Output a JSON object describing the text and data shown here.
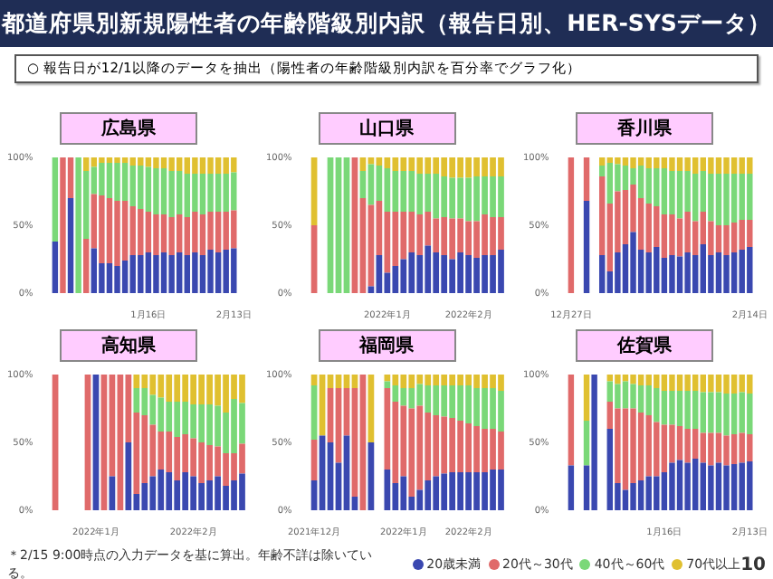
{
  "chart_data": [
    {
      "type": "other",
      "title": "都道府県別新規陽性者の年齢階級別内訳（報告日別、HER-SYSデータ）",
      "subtitle": "○ 報告日が12/1以降のデータを抽出（陽性者の年齢階級別内訳を百分率でグラフ化）",
      "annotations": [
        "＊2/15 9:00時点の入力データを基に算出。年齢不詳は除いている。",
        "10"
      ]
    },
    {
      "type": "bar",
      "title": "広島県",
      "stacked": true,
      "legend": "bottom",
      "ylim": [
        0,
        100
      ],
      "yticks": [
        {
          "value": 0,
          "label": "0%"
        },
        {
          "value": 50,
          "label": "50%"
        },
        {
          "value": 100,
          "label": "100%"
        }
      ],
      "categories": [
        null,
        null,
        null,
        null,
        null,
        null,
        null,
        null,
        null,
        null,
        null,
        null,
        "1月16日",
        null,
        null,
        null,
        null,
        null,
        null,
        null,
        null,
        null,
        null,
        "2月13日"
      ],
      "series": [
        {
          "name": "20歳未満",
          "color": "#3a48b0",
          "values": [
            38,
            0,
            70,
            0,
            0,
            33,
            22,
            22,
            20,
            24,
            28,
            28,
            30,
            28,
            30,
            28,
            30,
            28,
            30,
            28,
            32,
            30,
            32,
            33
          ]
        },
        {
          "name": "20代～30代",
          "color": "#e06a6a",
          "values": [
            0,
            100,
            30,
            0,
            40,
            40,
            50,
            48,
            48,
            44,
            36,
            34,
            30,
            30,
            28,
            28,
            28,
            28,
            30,
            30,
            28,
            30,
            28,
            28
          ]
        },
        {
          "name": "40代～60代",
          "color": "#7ad878",
          "values": [
            62,
            0,
            0,
            100,
            50,
            20,
            24,
            26,
            28,
            28,
            30,
            32,
            33,
            34,
            34,
            34,
            32,
            32,
            28,
            30,
            28,
            28,
            28,
            28
          ]
        },
        {
          "name": "70代以上",
          "color": "#e0c030",
          "values": [
            0,
            0,
            0,
            0,
            10,
            7,
            4,
            4,
            4,
            4,
            6,
            6,
            7,
            8,
            8,
            10,
            10,
            12,
            12,
            12,
            12,
            12,
            12,
            11
          ]
        }
      ]
    },
    {
      "type": "bar",
      "title": "山口県",
      "stacked": true,
      "ylim": [
        0,
        100
      ],
      "yticks": [
        {
          "value": 0,
          "label": "0%"
        },
        {
          "value": 50,
          "label": "50%"
        },
        {
          "value": 100,
          "label": "100%"
        }
      ],
      "categories": [
        null,
        null,
        null,
        null,
        null,
        null,
        null,
        null,
        null,
        "2022年1月",
        null,
        null,
        null,
        null,
        null,
        null,
        null,
        null,
        null,
        "2022年2月",
        null,
        null,
        null,
        null
      ],
      "series": [
        {
          "color": "#3a48b0",
          "values": [
            0,
            null,
            0,
            0,
            0,
            0,
            0,
            5,
            28,
            15,
            20,
            25,
            30,
            28,
            35,
            30,
            28,
            25,
            30,
            28,
            26,
            28,
            28,
            32
          ]
        },
        {
          "color": "#e06a6a",
          "values": [
            50,
            null,
            0,
            0,
            0,
            100,
            70,
            60,
            40,
            45,
            40,
            35,
            30,
            30,
            25,
            25,
            28,
            30,
            25,
            25,
            27,
            30,
            28,
            24
          ]
        },
        {
          "color": "#7ad878",
          "values": [
            0,
            null,
            100,
            100,
            100,
            0,
            20,
            30,
            26,
            32,
            30,
            30,
            30,
            30,
            28,
            33,
            30,
            30,
            30,
            32,
            33,
            28,
            30,
            30
          ]
        },
        {
          "color": "#e0c030",
          "values": [
            50,
            null,
            0,
            0,
            0,
            0,
            10,
            5,
            6,
            8,
            10,
            10,
            10,
            12,
            12,
            12,
            14,
            15,
            15,
            15,
            14,
            14,
            14,
            14
          ]
        }
      ]
    },
    {
      "type": "bar",
      "title": "香川県",
      "stacked": true,
      "ylim": [
        0,
        100
      ],
      "yticks": [
        {
          "value": 0,
          "label": "0%"
        },
        {
          "value": 50,
          "label": "50%"
        },
        {
          "value": 100,
          "label": "100%"
        }
      ],
      "categories": [
        "12月27日",
        null,
        null,
        null,
        null,
        null,
        null,
        null,
        null,
        null,
        null,
        null,
        null,
        null,
        null,
        null,
        null,
        null,
        null,
        null,
        null,
        null,
        null,
        "2月14日"
      ],
      "series": [
        {
          "color": "#3a48b0",
          "values": [
            0,
            null,
            68,
            null,
            28,
            16,
            30,
            36,
            45,
            32,
            30,
            34,
            26,
            28,
            27,
            30,
            28,
            36,
            28,
            30,
            28,
            30,
            32,
            34
          ]
        },
        {
          "color": "#e06a6a",
          "values": [
            100,
            null,
            32,
            null,
            58,
            50,
            45,
            40,
            35,
            38,
            36,
            30,
            32,
            30,
            28,
            30,
            25,
            24,
            25,
            20,
            22,
            22,
            22,
            20
          ]
        },
        {
          "color": "#7ad878",
          "values": [
            0,
            null,
            0,
            null,
            8,
            30,
            20,
            18,
            12,
            24,
            26,
            28,
            34,
            32,
            35,
            30,
            35,
            30,
            35,
            38,
            38,
            36,
            34,
            34
          ]
        },
        {
          "color": "#e0c030",
          "values": [
            0,
            null,
            0,
            null,
            6,
            4,
            5,
            6,
            8,
            6,
            8,
            8,
            8,
            10,
            10,
            10,
            12,
            10,
            12,
            12,
            12,
            12,
            12,
            12
          ]
        }
      ]
    },
    {
      "type": "bar",
      "title": "高知県",
      "stacked": true,
      "ylim": [
        0,
        100
      ],
      "yticks": [
        {
          "value": 0,
          "label": "0%"
        },
        {
          "value": 50,
          "label": "50%"
        },
        {
          "value": 100,
          "label": "100%"
        }
      ],
      "categories": [
        null,
        null,
        null,
        null,
        null,
        "2022年1月",
        null,
        null,
        null,
        null,
        null,
        null,
        null,
        null,
        null,
        null,
        null,
        "2022年2月",
        null,
        null,
        null,
        null,
        null,
        null
      ],
      "series": [
        {
          "color": "#3a48b0",
          "values": [
            0,
            null,
            null,
            null,
            0,
            100,
            0,
            25,
            0,
            50,
            12,
            20,
            25,
            30,
            28,
            22,
            28,
            25,
            20,
            22,
            25,
            18,
            22,
            27
          ]
        },
        {
          "color": "#e06a6a",
          "values": [
            100,
            null,
            null,
            null,
            100,
            0,
            100,
            75,
            100,
            50,
            60,
            50,
            38,
            28,
            30,
            32,
            28,
            28,
            30,
            26,
            22,
            24,
            20,
            22
          ]
        },
        {
          "color": "#7ad878",
          "values": [
            0,
            null,
            null,
            null,
            0,
            0,
            0,
            0,
            0,
            0,
            18,
            20,
            22,
            25,
            22,
            26,
            24,
            25,
            28,
            30,
            30,
            30,
            40,
            30
          ]
        },
        {
          "color": "#e0c030",
          "values": [
            0,
            null,
            null,
            null,
            0,
            0,
            0,
            0,
            0,
            0,
            10,
            10,
            15,
            17,
            20,
            20,
            20,
            22,
            22,
            22,
            23,
            28,
            18,
            21
          ]
        }
      ]
    },
    {
      "type": "bar",
      "title": "福岡県",
      "stacked": true,
      "ylim": [
        0,
        100
      ],
      "yticks": [
        {
          "value": 0,
          "label": "0%"
        },
        {
          "value": 50,
          "label": "50%"
        },
        {
          "value": 100,
          "label": "100%"
        }
      ],
      "categories": [
        "2021年12月",
        null,
        null,
        null,
        null,
        null,
        null,
        null,
        null,
        null,
        null,
        "2022年1月",
        null,
        null,
        null,
        null,
        null,
        null,
        null,
        "2022年2月",
        null,
        null,
        null,
        null
      ],
      "series": [
        {
          "color": "#3a48b0",
          "values": [
            22,
            55,
            50,
            35,
            55,
            10,
            0,
            50,
            null,
            30,
            20,
            25,
            10,
            15,
            22,
            25,
            27,
            28,
            28,
            28,
            28,
            28,
            30,
            30
          ]
        },
        {
          "color": "#e06a6a",
          "values": [
            30,
            0,
            40,
            55,
            35,
            80,
            100,
            0,
            null,
            60,
            60,
            52,
            65,
            62,
            50,
            45,
            42,
            40,
            38,
            36,
            34,
            32,
            30,
            28
          ]
        },
        {
          "color": "#7ad878",
          "values": [
            40,
            0,
            0,
            0,
            0,
            0,
            0,
            0,
            null,
            5,
            12,
            13,
            15,
            16,
            20,
            22,
            23,
            24,
            26,
            28,
            28,
            30,
            30,
            30
          ]
        },
        {
          "color": "#e0c030",
          "values": [
            8,
            45,
            10,
            10,
            10,
            10,
            0,
            50,
            null,
            5,
            8,
            10,
            10,
            7,
            8,
            8,
            8,
            8,
            8,
            8,
            10,
            10,
            10,
            12
          ]
        }
      ]
    },
    {
      "type": "bar",
      "title": "佐賀県",
      "stacked": true,
      "ylim": [
        0,
        100
      ],
      "yticks": [
        {
          "value": 0,
          "label": "0%"
        },
        {
          "value": 50,
          "label": "50%"
        },
        {
          "value": 100,
          "label": "100%"
        }
      ],
      "categories": [
        null,
        null,
        null,
        null,
        null,
        null,
        null,
        null,
        null,
        null,
        null,
        null,
        "1月16日",
        null,
        null,
        null,
        null,
        null,
        null,
        null,
        null,
        null,
        null,
        "2月13日"
      ],
      "series": [
        {
          "color": "#3a48b0",
          "values": [
            33,
            null,
            33,
            100,
            null,
            60,
            20,
            15,
            20,
            22,
            25,
            25,
            28,
            35,
            37,
            35,
            38,
            35,
            33,
            35,
            33,
            34,
            35,
            36
          ]
        },
        {
          "color": "#e06a6a",
          "values": [
            67,
            null,
            0,
            0,
            null,
            20,
            55,
            60,
            55,
            50,
            45,
            40,
            35,
            28,
            25,
            25,
            22,
            22,
            24,
            22,
            22,
            22,
            22,
            20
          ]
        },
        {
          "color": "#7ad878",
          "values": [
            0,
            null,
            33,
            0,
            null,
            15,
            18,
            20,
            18,
            20,
            22,
            25,
            25,
            25,
            26,
            28,
            28,
            30,
            30,
            30,
            31,
            30,
            30,
            30
          ]
        },
        {
          "color": "#e0c030",
          "values": [
            0,
            null,
            34,
            0,
            null,
            5,
            7,
            5,
            7,
            8,
            8,
            10,
            12,
            12,
            12,
            12,
            12,
            13,
            13,
            13,
            14,
            14,
            13,
            14
          ]
        }
      ]
    }
  ]
}
